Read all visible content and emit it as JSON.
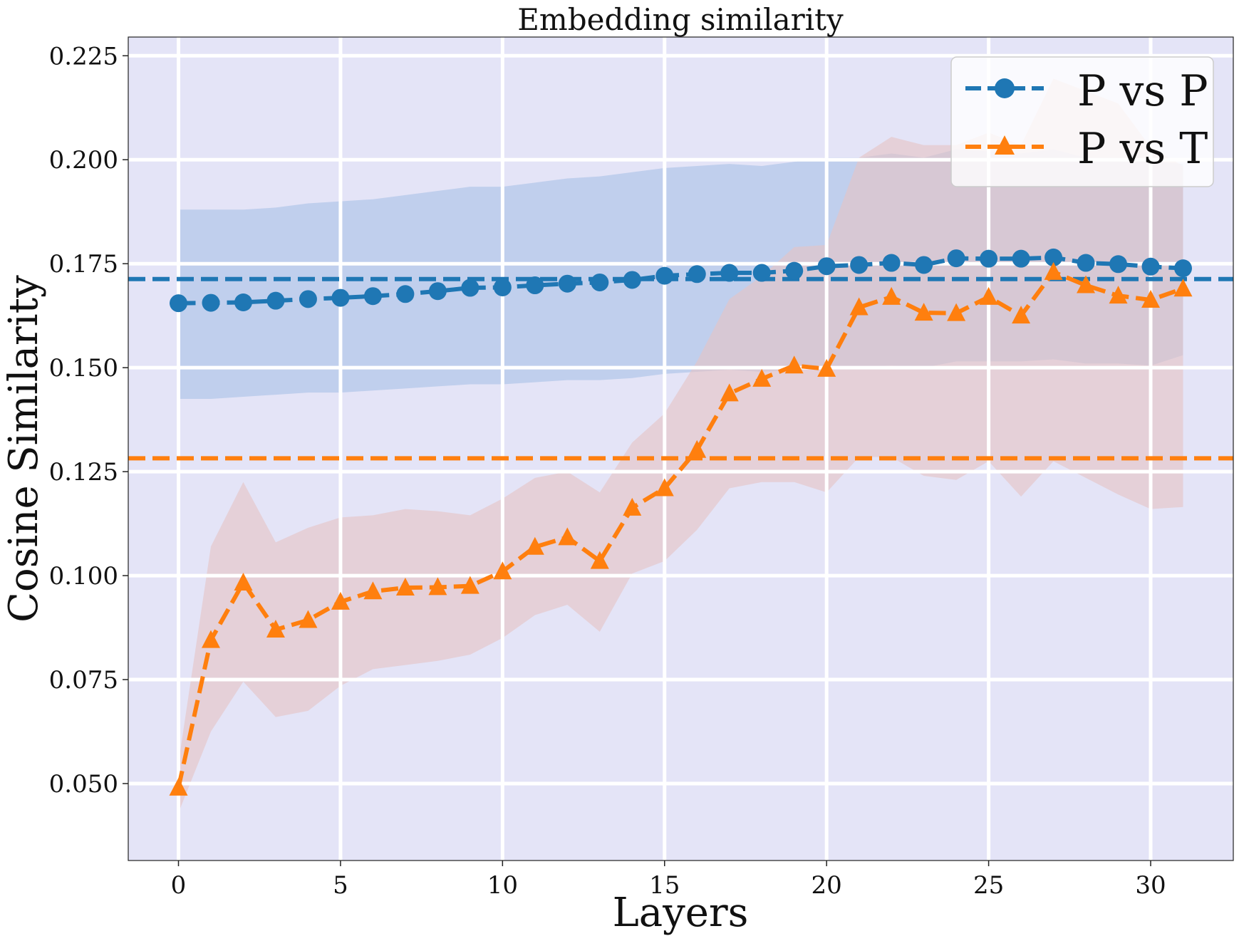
{
  "chart_data": {
    "type": "line",
    "title": "Embedding similarity",
    "xlabel": "Layers",
    "ylabel": "Cosine Similarity",
    "xlim": [
      -1.55,
      32.55
    ],
    "ylim": [
      0.0315,
      0.2295
    ],
    "xticks": [
      0,
      5,
      10,
      15,
      20,
      25,
      30
    ],
    "xtick_labels": [
      "0",
      "5",
      "10",
      "15",
      "20",
      "25",
      "30"
    ],
    "yticks": [
      0.05,
      0.075,
      0.1,
      0.125,
      0.15,
      0.175,
      0.2,
      0.225
    ],
    "ytick_labels": [
      "0.050",
      "0.075",
      "0.100",
      "0.125",
      "0.150",
      "0.175",
      "0.200",
      "0.225"
    ],
    "grid": true,
    "background": "#e4e4f7",
    "legend_position": "top-right",
    "x": [
      0,
      1,
      2,
      3,
      4,
      5,
      6,
      7,
      8,
      9,
      10,
      11,
      12,
      13,
      14,
      15,
      16,
      17,
      18,
      19,
      20,
      21,
      22,
      23,
      24,
      25,
      26,
      27,
      28,
      29,
      30,
      31
    ],
    "series": [
      {
        "name": "P vs P",
        "color": "#1f77b4",
        "marker": "circle",
        "band_color": "#a9c1e6",
        "values": [
          0.1655,
          0.1656,
          0.1657,
          0.1661,
          0.1665,
          0.1668,
          0.1672,
          0.1677,
          0.1684,
          0.1692,
          0.1693,
          0.1698,
          0.1702,
          0.1705,
          0.1711,
          0.1721,
          0.1725,
          0.1728,
          0.1728,
          0.1733,
          0.1744,
          0.1747,
          0.1752,
          0.1747,
          0.1763,
          0.1762,
          0.1762,
          0.1765,
          0.1752,
          0.1749,
          0.1743,
          0.1739
        ],
        "upper": [
          0.188,
          0.188,
          0.188,
          0.1885,
          0.1895,
          0.19,
          0.1905,
          0.1915,
          0.1925,
          0.1935,
          0.1935,
          0.1945,
          0.1955,
          0.196,
          0.197,
          0.198,
          0.1985,
          0.199,
          0.1985,
          0.1995,
          0.2005,
          0.2005,
          0.2015,
          0.2005,
          0.2025,
          0.202,
          0.2015,
          0.2025,
          0.2005,
          0.2005,
          0.1995,
          0.199
        ],
        "lower": [
          0.1425,
          0.1425,
          0.143,
          0.1435,
          0.144,
          0.144,
          0.1445,
          0.145,
          0.1455,
          0.146,
          0.146,
          0.1465,
          0.147,
          0.147,
          0.1475,
          0.1485,
          0.149,
          0.1495,
          0.149,
          0.1495,
          0.15,
          0.15,
          0.1505,
          0.15,
          0.1515,
          0.1515,
          0.1515,
          0.152,
          0.151,
          0.151,
          0.1505,
          0.153
        ],
        "mean_line": 0.1713
      },
      {
        "name": "P vs T",
        "color": "#ff7f0e",
        "marker": "triangle",
        "band_color": "#e6c3c3",
        "values": [
          0.049,
          0.0845,
          0.0983,
          0.087,
          0.0893,
          0.0937,
          0.0962,
          0.0971,
          0.0972,
          0.0975,
          0.101,
          0.1069,
          0.1092,
          0.1035,
          0.1163,
          0.121,
          0.1302,
          0.1438,
          0.1473,
          0.1505,
          0.1497,
          0.1645,
          0.167,
          0.1632,
          0.1631,
          0.167,
          0.1625,
          0.173,
          0.1698,
          0.1673,
          0.1663,
          0.169
        ],
        "upper": [
          0.055,
          0.107,
          0.1225,
          0.108,
          0.1115,
          0.114,
          0.1145,
          0.116,
          0.1155,
          0.1145,
          0.1185,
          0.1235,
          0.125,
          0.12,
          0.132,
          0.139,
          0.1515,
          0.1665,
          0.172,
          0.179,
          0.1795,
          0.2005,
          0.2055,
          0.2035,
          0.2035,
          0.2065,
          0.2035,
          0.2195,
          0.2165,
          0.2135,
          0.203,
          0.1985
        ],
        "lower": [
          0.043,
          0.0625,
          0.0745,
          0.066,
          0.0675,
          0.0735,
          0.0775,
          0.0785,
          0.0795,
          0.081,
          0.085,
          0.0905,
          0.093,
          0.0865,
          0.1005,
          0.1035,
          0.111,
          0.121,
          0.1225,
          0.1225,
          0.12,
          0.1285,
          0.1285,
          0.124,
          0.123,
          0.1275,
          0.119,
          0.1275,
          0.1235,
          0.1195,
          0.116,
          0.1165
        ],
        "mean_line": 0.1282
      }
    ]
  }
}
